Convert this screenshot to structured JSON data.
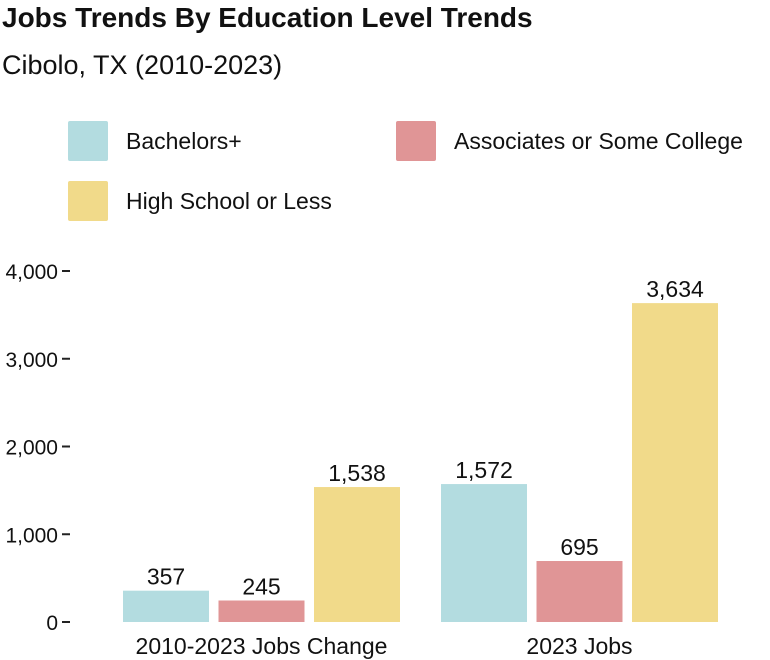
{
  "title": "Jobs Trends By Education Level Trends",
  "subtitle": "Cibolo, TX (2010-2023)",
  "chart_data": {
    "type": "bar",
    "categories": [
      "2010-2023 Jobs Change",
      "2023 Jobs"
    ],
    "series": [
      {
        "name": "Bachelors+",
        "color": "#b3dce0",
        "values": [
          357,
          1572
        ]
      },
      {
        "name": "Associates or Some College",
        "color": "#e09596",
        "values": [
          245,
          695
        ]
      },
      {
        "name": "High School or Less",
        "color": "#f1da8a",
        "values": [
          1538,
          3634
        ]
      }
    ],
    "data_labels": [
      [
        "357",
        "1,572"
      ],
      [
        "245",
        "695"
      ],
      [
        "1,538",
        "3,634"
      ]
    ],
    "y_ticks": [
      0,
      1000,
      2000,
      3000,
      4000
    ],
    "y_tick_labels": [
      "0",
      "1,000",
      "2,000",
      "3,000",
      "4,000"
    ],
    "ylim": [
      0,
      4000
    ],
    "legend_position": "top",
    "grid": false
  }
}
